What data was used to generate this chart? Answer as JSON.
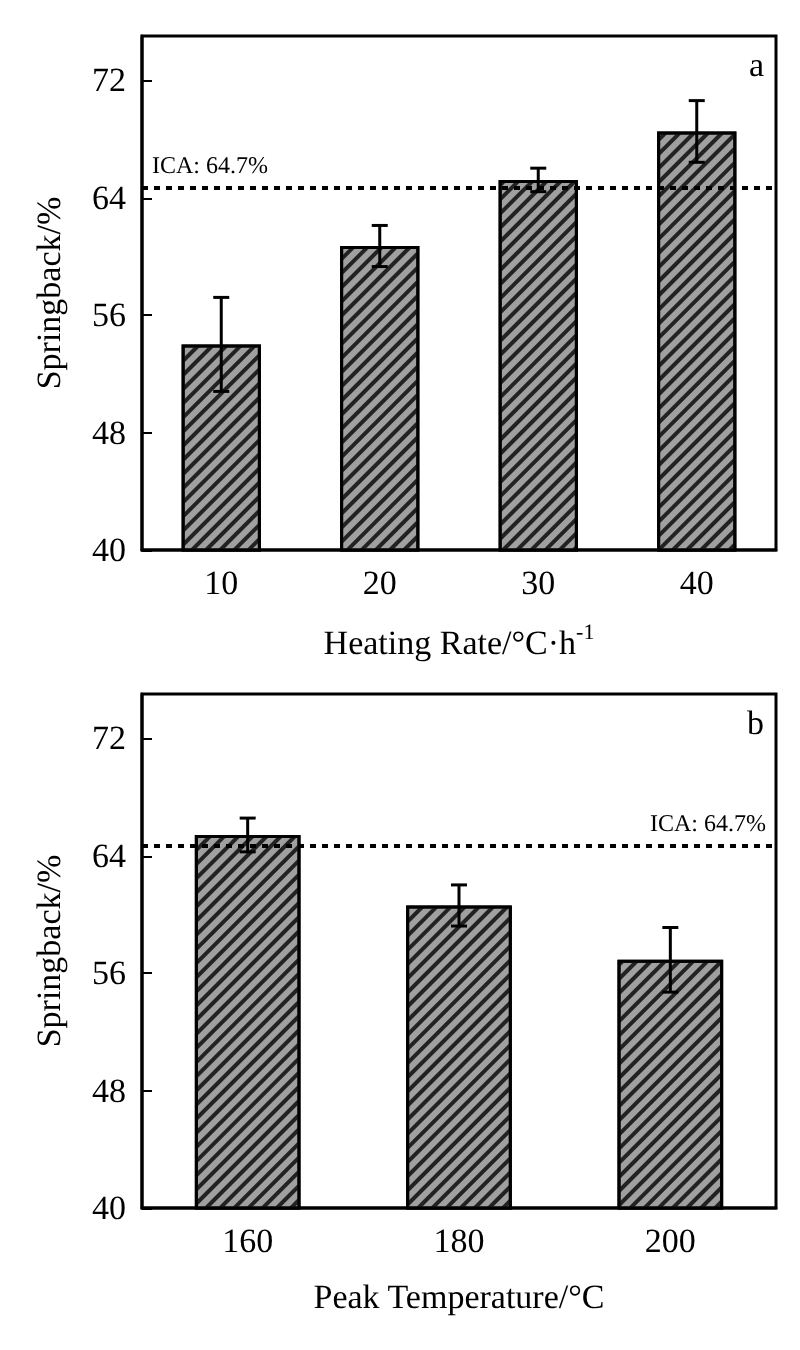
{
  "chart_data": [
    {
      "type": "bar",
      "xlabel": "Heating Rate/°C·h$^{-1}$",
      "ylabel": "Springback/%",
      "annotations": [
        "a"
      ],
      "categories": [
        "10",
        "20",
        "30",
        "40"
      ],
      "series": [
        {
          "color": "#a0a0a0",
          "values": [
            54.0,
            60.7,
            65.2,
            68.5
          ],
          "errors": [
            3.2,
            1.4,
            0.8,
            2.1
          ]
        }
      ],
      "ylim": [
        40,
        75
      ],
      "yticks": [
        40,
        48,
        56,
        64,
        72
      ],
      "grid": false,
      "ref_lines": [
        {
          "axis": "y",
          "value": 64.7,
          "label": "ICA: 64.7%",
          "line_style": "dotted",
          "color": "#000000"
        }
      ]
    },
    {
      "type": "bar",
      "xlabel": "Peak Temperature/°C",
      "ylabel": "Springback/%",
      "annotations": [
        "b"
      ],
      "categories": [
        "160",
        "180",
        "200"
      ],
      "series": [
        {
          "color": "#a0a0a0",
          "values": [
            65.4,
            60.6,
            56.9
          ],
          "errors": [
            1.15,
            1.4,
            2.2
          ]
        }
      ],
      "ylim": [
        40,
        75
      ],
      "yticks": [
        40,
        48,
        56,
        64,
        72
      ],
      "grid": false,
      "ref_lines": [
        {
          "axis": "y",
          "value": 64.7,
          "label": "ICA: 64.7%",
          "line_style": "dotted",
          "color": "#000000"
        }
      ]
    }
  ]
}
